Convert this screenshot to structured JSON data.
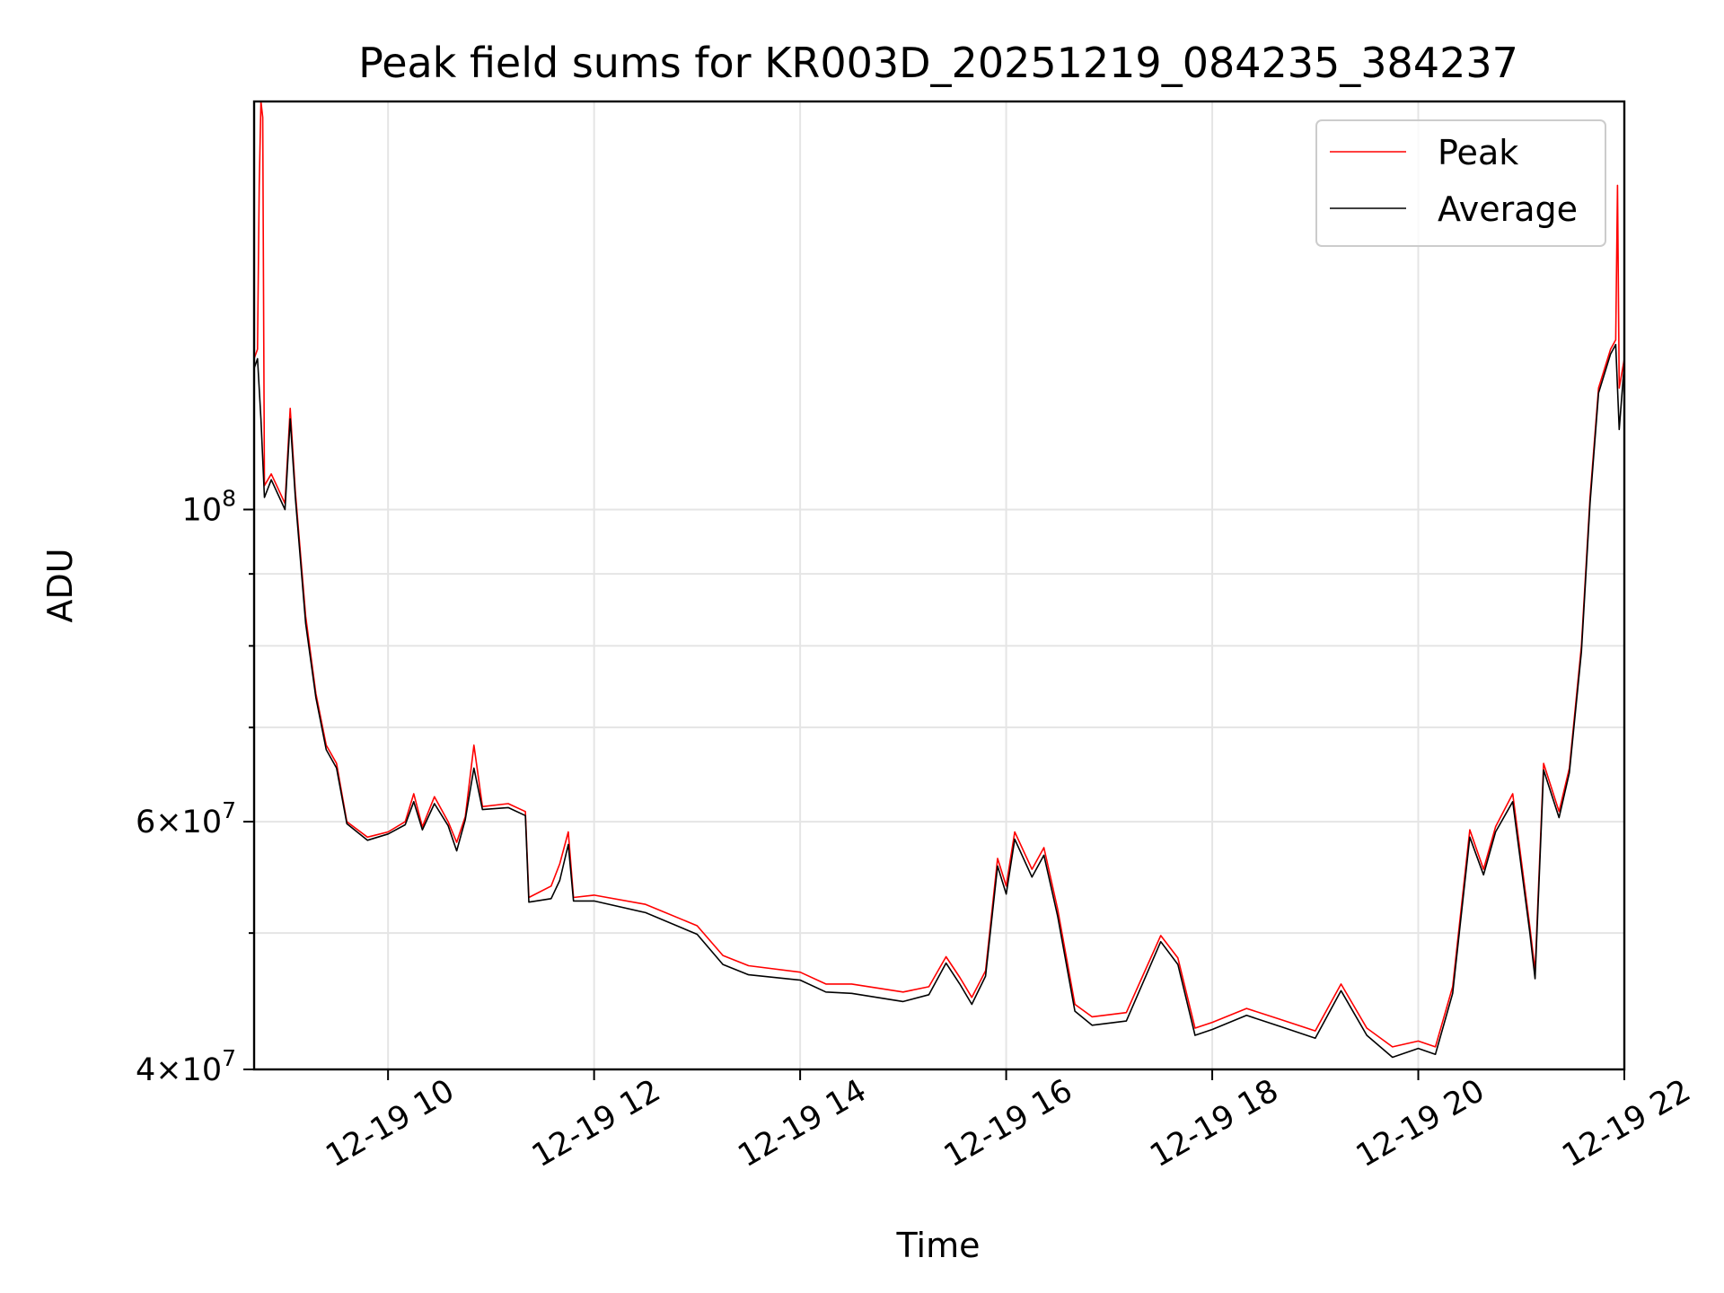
{
  "chart_data": {
    "type": "line",
    "title": "Peak field sums for KR003D_20251219_084235_384237",
    "xlabel": "Time",
    "ylabel": "ADU",
    "yscale": "log",
    "ylim": [
      40000000,
      195000000
    ],
    "xlim": [
      "2025-12-19T08:42",
      "2025-12-19T22:00"
    ],
    "grid": true,
    "legend_position": "top-right",
    "x_ticks": [
      {
        "value": "2025-12-19T10:00",
        "label": "12-19 10"
      },
      {
        "value": "2025-12-19T12:00",
        "label": "12-19 12"
      },
      {
        "value": "2025-12-19T14:00",
        "label": "12-19 14"
      },
      {
        "value": "2025-12-19T16:00",
        "label": "12-19 16"
      },
      {
        "value": "2025-12-19T18:00",
        "label": "12-19 18"
      },
      {
        "value": "2025-12-19T20:00",
        "label": "12-19 20"
      },
      {
        "value": "2025-12-19T22:00",
        "label": "12-19 22"
      }
    ],
    "y_ticks": [
      {
        "value": 40000000,
        "mantissa": "4",
        "exp": "7"
      },
      {
        "value": 60000000,
        "mantissa": "6",
        "exp": "7"
      },
      {
        "value": 100000000,
        "mantissa": "",
        "exp": "8"
      }
    ],
    "y_minor_ticks": [
      50000000,
      70000000,
      80000000,
      90000000
    ],
    "series": [
      {
        "name": "Peak",
        "color": "#ff0000",
        "points": [
          [
            "2025-12-19T08:42",
            128000000
          ],
          [
            "2025-12-19T08:44",
            130000000
          ],
          [
            "2025-12-19T08:45",
            170000000
          ],
          [
            "2025-12-19T08:46",
            195000000
          ],
          [
            "2025-12-19T08:47",
            190000000
          ],
          [
            "2025-12-19T08:48",
            104000000
          ],
          [
            "2025-12-19T08:52",
            106000000
          ],
          [
            "2025-12-19T09:00",
            101000000
          ],
          [
            "2025-12-19T09:03",
            118000000
          ],
          [
            "2025-12-19T09:06",
            103000000
          ],
          [
            "2025-12-19T09:12",
            84000000
          ],
          [
            "2025-12-19T09:18",
            74000000
          ],
          [
            "2025-12-19T09:24",
            68000000
          ],
          [
            "2025-12-19T09:30",
            66000000
          ],
          [
            "2025-12-19T09:36",
            60000000
          ],
          [
            "2025-12-19T09:48",
            58500000
          ],
          [
            "2025-12-19T10:00",
            59000000
          ],
          [
            "2025-12-19T10:10",
            60000000
          ],
          [
            "2025-12-19T10:15",
            62800000
          ],
          [
            "2025-12-19T10:20",
            59500000
          ],
          [
            "2025-12-19T10:27",
            62500000
          ],
          [
            "2025-12-19T10:35",
            60000000
          ],
          [
            "2025-12-19T10:40",
            58000000
          ],
          [
            "2025-12-19T10:45",
            60500000
          ],
          [
            "2025-12-19T10:50",
            68000000
          ],
          [
            "2025-12-19T10:55",
            61500000
          ],
          [
            "2025-12-19T11:10",
            61800000
          ],
          [
            "2025-12-19T11:20",
            61000000
          ],
          [
            "2025-12-19T11:22",
            53000000
          ],
          [
            "2025-12-19T11:35",
            54000000
          ],
          [
            "2025-12-19T11:40",
            56000000
          ],
          [
            "2025-12-19T11:45",
            59000000
          ],
          [
            "2025-12-19T11:48",
            53000000
          ],
          [
            "2025-12-19T12:00",
            53200000
          ],
          [
            "2025-12-19T12:30",
            52400000
          ],
          [
            "2025-12-19T13:00",
            50600000
          ],
          [
            "2025-12-19T13:15",
            48200000
          ],
          [
            "2025-12-19T13:30",
            47400000
          ],
          [
            "2025-12-19T14:00",
            46900000
          ],
          [
            "2025-12-19T14:15",
            46000000
          ],
          [
            "2025-12-19T14:30",
            46000000
          ],
          [
            "2025-12-19T15:00",
            45400000
          ],
          [
            "2025-12-19T15:15",
            45800000
          ],
          [
            "2025-12-19T15:25",
            48100000
          ],
          [
            "2025-12-19T15:33",
            46500000
          ],
          [
            "2025-12-19T15:40",
            45000000
          ],
          [
            "2025-12-19T15:48",
            47000000
          ],
          [
            "2025-12-19T15:55",
            56500000
          ],
          [
            "2025-12-19T16:00",
            54000000
          ],
          [
            "2025-12-19T16:05",
            59000000
          ],
          [
            "2025-12-19T16:15",
            55500000
          ],
          [
            "2025-12-19T16:22",
            57500000
          ],
          [
            "2025-12-19T16:30",
            52000000
          ],
          [
            "2025-12-19T16:40",
            44500000
          ],
          [
            "2025-12-19T16:50",
            43600000
          ],
          [
            "2025-12-19T17:10",
            43900000
          ],
          [
            "2025-12-19T17:30",
            49800000
          ],
          [
            "2025-12-19T17:40",
            48000000
          ],
          [
            "2025-12-19T17:50",
            42800000
          ],
          [
            "2025-12-19T18:00",
            43200000
          ],
          [
            "2025-12-19T18:20",
            44200000
          ],
          [
            "2025-12-19T18:40",
            43400000
          ],
          [
            "2025-12-19T19:00",
            42600000
          ],
          [
            "2025-12-19T19:15",
            46000000
          ],
          [
            "2025-12-19T19:30",
            42800000
          ],
          [
            "2025-12-19T19:45",
            41500000
          ],
          [
            "2025-12-19T20:00",
            41900000
          ],
          [
            "2025-12-19T20:10",
            41500000
          ],
          [
            "2025-12-19T20:20",
            45800000
          ],
          [
            "2025-12-19T20:30",
            59200000
          ],
          [
            "2025-12-19T20:38",
            55500000
          ],
          [
            "2025-12-19T20:45",
            59500000
          ],
          [
            "2025-12-19T20:55",
            62800000
          ],
          [
            "2025-12-19T21:05",
            50500000
          ],
          [
            "2025-12-19T21:08",
            47000000
          ],
          [
            "2025-12-19T21:13",
            66000000
          ],
          [
            "2025-12-19T21:22",
            61000000
          ],
          [
            "2025-12-19T21:28",
            65500000
          ],
          [
            "2025-12-19T21:35",
            80000000
          ],
          [
            "2025-12-19T21:40",
            102000000
          ],
          [
            "2025-12-19T21:45",
            122000000
          ],
          [
            "2025-12-19T21:52",
            130000000
          ],
          [
            "2025-12-19T21:55",
            132000000
          ],
          [
            "2025-12-19T21:56",
            170000000
          ],
          [
            "2025-12-19T21:57",
            122000000
          ],
          [
            "2025-12-19T22:00",
            128000000
          ]
        ]
      },
      {
        "name": "Average",
        "color": "#000000",
        "points": [
          [
            "2025-12-19T08:42",
            126000000
          ],
          [
            "2025-12-19T08:44",
            128000000
          ],
          [
            "2025-12-19T08:46",
            116000000
          ],
          [
            "2025-12-19T08:48",
            102000000
          ],
          [
            "2025-12-19T08:52",
            105000000
          ],
          [
            "2025-12-19T09:00",
            100000000
          ],
          [
            "2025-12-19T09:03",
            116000000
          ],
          [
            "2025-12-19T09:06",
            102000000
          ],
          [
            "2025-12-19T09:12",
            83000000
          ],
          [
            "2025-12-19T09:18",
            73500000
          ],
          [
            "2025-12-19T09:24",
            67500000
          ],
          [
            "2025-12-19T09:30",
            65500000
          ],
          [
            "2025-12-19T09:36",
            59800000
          ],
          [
            "2025-12-19T09:48",
            58200000
          ],
          [
            "2025-12-19T10:00",
            58800000
          ],
          [
            "2025-12-19T10:10",
            59700000
          ],
          [
            "2025-12-19T10:15",
            62000000
          ],
          [
            "2025-12-19T10:20",
            59200000
          ],
          [
            "2025-12-19T10:27",
            61800000
          ],
          [
            "2025-12-19T10:35",
            59600000
          ],
          [
            "2025-12-19T10:40",
            57200000
          ],
          [
            "2025-12-19T10:45",
            60200000
          ],
          [
            "2025-12-19T10:50",
            65500000
          ],
          [
            "2025-12-19T10:55",
            61200000
          ],
          [
            "2025-12-19T11:10",
            61400000
          ],
          [
            "2025-12-19T11:20",
            60600000
          ],
          [
            "2025-12-19T11:22",
            52600000
          ],
          [
            "2025-12-19T11:35",
            52900000
          ],
          [
            "2025-12-19T11:40",
            54500000
          ],
          [
            "2025-12-19T11:45",
            57800000
          ],
          [
            "2025-12-19T11:48",
            52700000
          ],
          [
            "2025-12-19T12:00",
            52700000
          ],
          [
            "2025-12-19T12:30",
            51700000
          ],
          [
            "2025-12-19T13:00",
            49900000
          ],
          [
            "2025-12-19T13:15",
            47500000
          ],
          [
            "2025-12-19T13:30",
            46700000
          ],
          [
            "2025-12-19T14:00",
            46300000
          ],
          [
            "2025-12-19T14:15",
            45400000
          ],
          [
            "2025-12-19T14:30",
            45300000
          ],
          [
            "2025-12-19T15:00",
            44700000
          ],
          [
            "2025-12-19T15:15",
            45200000
          ],
          [
            "2025-12-19T15:25",
            47600000
          ],
          [
            "2025-12-19T15:33",
            46000000
          ],
          [
            "2025-12-19T15:40",
            44500000
          ],
          [
            "2025-12-19T15:48",
            46600000
          ],
          [
            "2025-12-19T15:55",
            55800000
          ],
          [
            "2025-12-19T16:00",
            53300000
          ],
          [
            "2025-12-19T16:05",
            58300000
          ],
          [
            "2025-12-19T16:15",
            54800000
          ],
          [
            "2025-12-19T16:22",
            56800000
          ],
          [
            "2025-12-19T16:30",
            51400000
          ],
          [
            "2025-12-19T16:40",
            44000000
          ],
          [
            "2025-12-19T16:50",
            43000000
          ],
          [
            "2025-12-19T17:10",
            43300000
          ],
          [
            "2025-12-19T17:30",
            49300000
          ],
          [
            "2025-12-19T17:40",
            47500000
          ],
          [
            "2025-12-19T17:50",
            42300000
          ],
          [
            "2025-12-19T18:00",
            42700000
          ],
          [
            "2025-12-19T18:20",
            43700000
          ],
          [
            "2025-12-19T18:40",
            42900000
          ],
          [
            "2025-12-19T19:00",
            42100000
          ],
          [
            "2025-12-19T19:15",
            45500000
          ],
          [
            "2025-12-19T19:30",
            42300000
          ],
          [
            "2025-12-19T19:45",
            40800000
          ],
          [
            "2025-12-19T20:00",
            41400000
          ],
          [
            "2025-12-19T20:10",
            41000000
          ],
          [
            "2025-12-19T20:20",
            45300000
          ],
          [
            "2025-12-19T20:30",
            58500000
          ],
          [
            "2025-12-19T20:38",
            55000000
          ],
          [
            "2025-12-19T20:45",
            59000000
          ],
          [
            "2025-12-19T20:55",
            62000000
          ],
          [
            "2025-12-19T21:05",
            50000000
          ],
          [
            "2025-12-19T21:08",
            46400000
          ],
          [
            "2025-12-19T21:13",
            65300000
          ],
          [
            "2025-12-19T21:22",
            60400000
          ],
          [
            "2025-12-19T21:28",
            65000000
          ],
          [
            "2025-12-19T21:35",
            79200000
          ],
          [
            "2025-12-19T21:40",
            101000000
          ],
          [
            "2025-12-19T21:45",
            121000000
          ],
          [
            "2025-12-19T21:52",
            129000000
          ],
          [
            "2025-12-19T21:55",
            131000000
          ],
          [
            "2025-12-19T21:57",
            114000000
          ],
          [
            "2025-12-19T22:00",
            127000000
          ]
        ]
      }
    ]
  }
}
